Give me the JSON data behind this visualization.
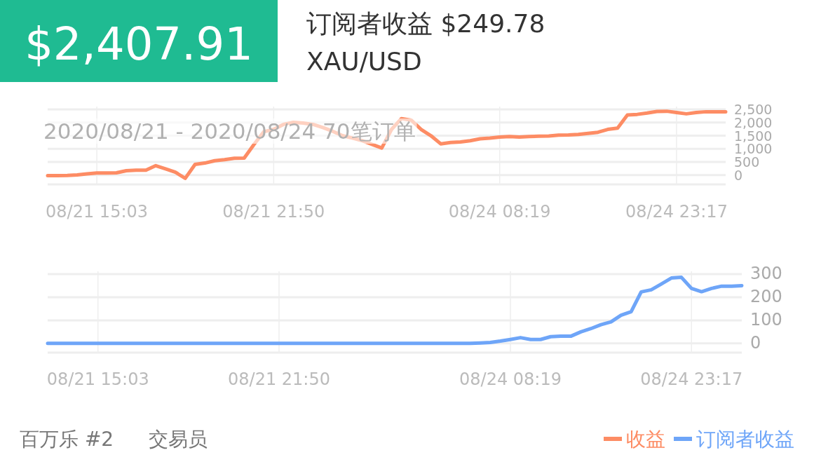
{
  "chart_data": [
    {
      "type": "line",
      "annotations": [
        "$2,407.91",
        "订阅者收益 $249.78",
        "XAU/USD",
        "2020/08/21 - 2020/08/24 70笔订单"
      ],
      "categories": [
        null,
        null,
        null,
        null,
        null,
        "08/21 15:03",
        null,
        null,
        null,
        null,
        null,
        null,
        null,
        null,
        null,
        null,
        null,
        null,
        null,
        null,
        null,
        null,
        null,
        "08/21 21:50",
        null,
        null,
        null,
        null,
        null,
        null,
        null,
        null,
        null,
        null,
        null,
        null,
        null,
        null,
        null,
        null,
        null,
        null,
        null,
        null,
        null,
        null,
        "08/24 08:19",
        null,
        null,
        null,
        null,
        null,
        null,
        null,
        null,
        null,
        null,
        null,
        null,
        null,
        null,
        null,
        null,
        null,
        "08/24 23:17",
        null,
        null,
        null,
        null,
        null
      ],
      "series": [
        {
          "name": "收益",
          "color": "#fd8c64",
          "values": [
            -20,
            -20,
            -10,
            10,
            50,
            80,
            80,
            90,
            170,
            190,
            190,
            360,
            240,
            110,
            -120,
            410,
            460,
            550,
            590,
            640,
            650,
            1170,
            1650,
            1740,
            1930,
            2010,
            1980,
            1930,
            1810,
            1670,
            1500,
            1410,
            1310,
            1170,
            1030,
            1740,
            2150,
            2090,
            1740,
            1500,
            1190,
            1240,
            1260,
            1310,
            1380,
            1410,
            1450,
            1470,
            1450,
            1470,
            1480,
            1490,
            1520,
            1530,
            1550,
            1590,
            1630,
            1740,
            1790,
            2290,
            2310,
            2360,
            2420,
            2430,
            2380,
            2330,
            2380,
            2410,
            2410,
            2410
          ]
        }
      ],
      "ylim": [
        -350,
        2500
      ],
      "yticks": [
        0,
        500,
        {
          "value": 1000,
          "label": "1,000"
        },
        {
          "value": 1500,
          "label": "1,500"
        },
        {
          "value": 2000,
          "label": "2,000"
        },
        {
          "value": 2500,
          "label": "2,500"
        }
      ],
      "grid": true,
      "legend": "bottom right",
      "line_style": "solid",
      "marker": "none"
    },
    {
      "type": "line",
      "annotations": [
        "百万乐 #2",
        "交易员"
      ],
      "categories": [
        null,
        null,
        null,
        null,
        null,
        "08/21 15:03",
        null,
        null,
        null,
        null,
        null,
        null,
        null,
        null,
        null,
        null,
        null,
        null,
        null,
        null,
        null,
        null,
        null,
        "08/21 21:50",
        null,
        null,
        null,
        null,
        null,
        null,
        null,
        null,
        null,
        null,
        null,
        null,
        null,
        null,
        null,
        null,
        null,
        null,
        null,
        null,
        null,
        null,
        "08/24 08:19",
        null,
        null,
        null,
        null,
        null,
        null,
        null,
        null,
        null,
        null,
        null,
        null,
        null,
        null,
        null,
        null,
        null,
        "08/24 23:17",
        null,
        null,
        null,
        null,
        null
      ],
      "series": [
        {
          "name": "订阅者收益",
          "color": "#6ea5f8",
          "values": [
            0,
            0,
            0,
            0,
            0,
            0,
            0,
            0,
            0,
            0,
            0,
            0,
            0,
            0,
            0,
            0,
            0,
            0,
            0,
            0,
            0,
            0,
            0,
            0,
            0,
            0,
            0,
            0,
            0,
            0,
            0,
            0,
            0,
            0,
            0,
            0,
            0,
            0,
            0,
            0,
            0,
            0,
            0,
            2,
            4,
            10,
            17,
            25,
            17,
            17,
            29,
            31,
            31,
            50,
            64,
            81,
            93,
            122,
            137,
            223,
            232,
            257,
            283,
            286,
            238,
            224,
            238,
            248,
            248,
            250
          ]
        }
      ],
      "ylim": [
        -40,
        300
      ],
      "yticks": [
        0,
        100,
        200,
        300
      ],
      "grid": true,
      "legend": "bottom right",
      "line_style": "solid",
      "marker": "none"
    }
  ]
}
